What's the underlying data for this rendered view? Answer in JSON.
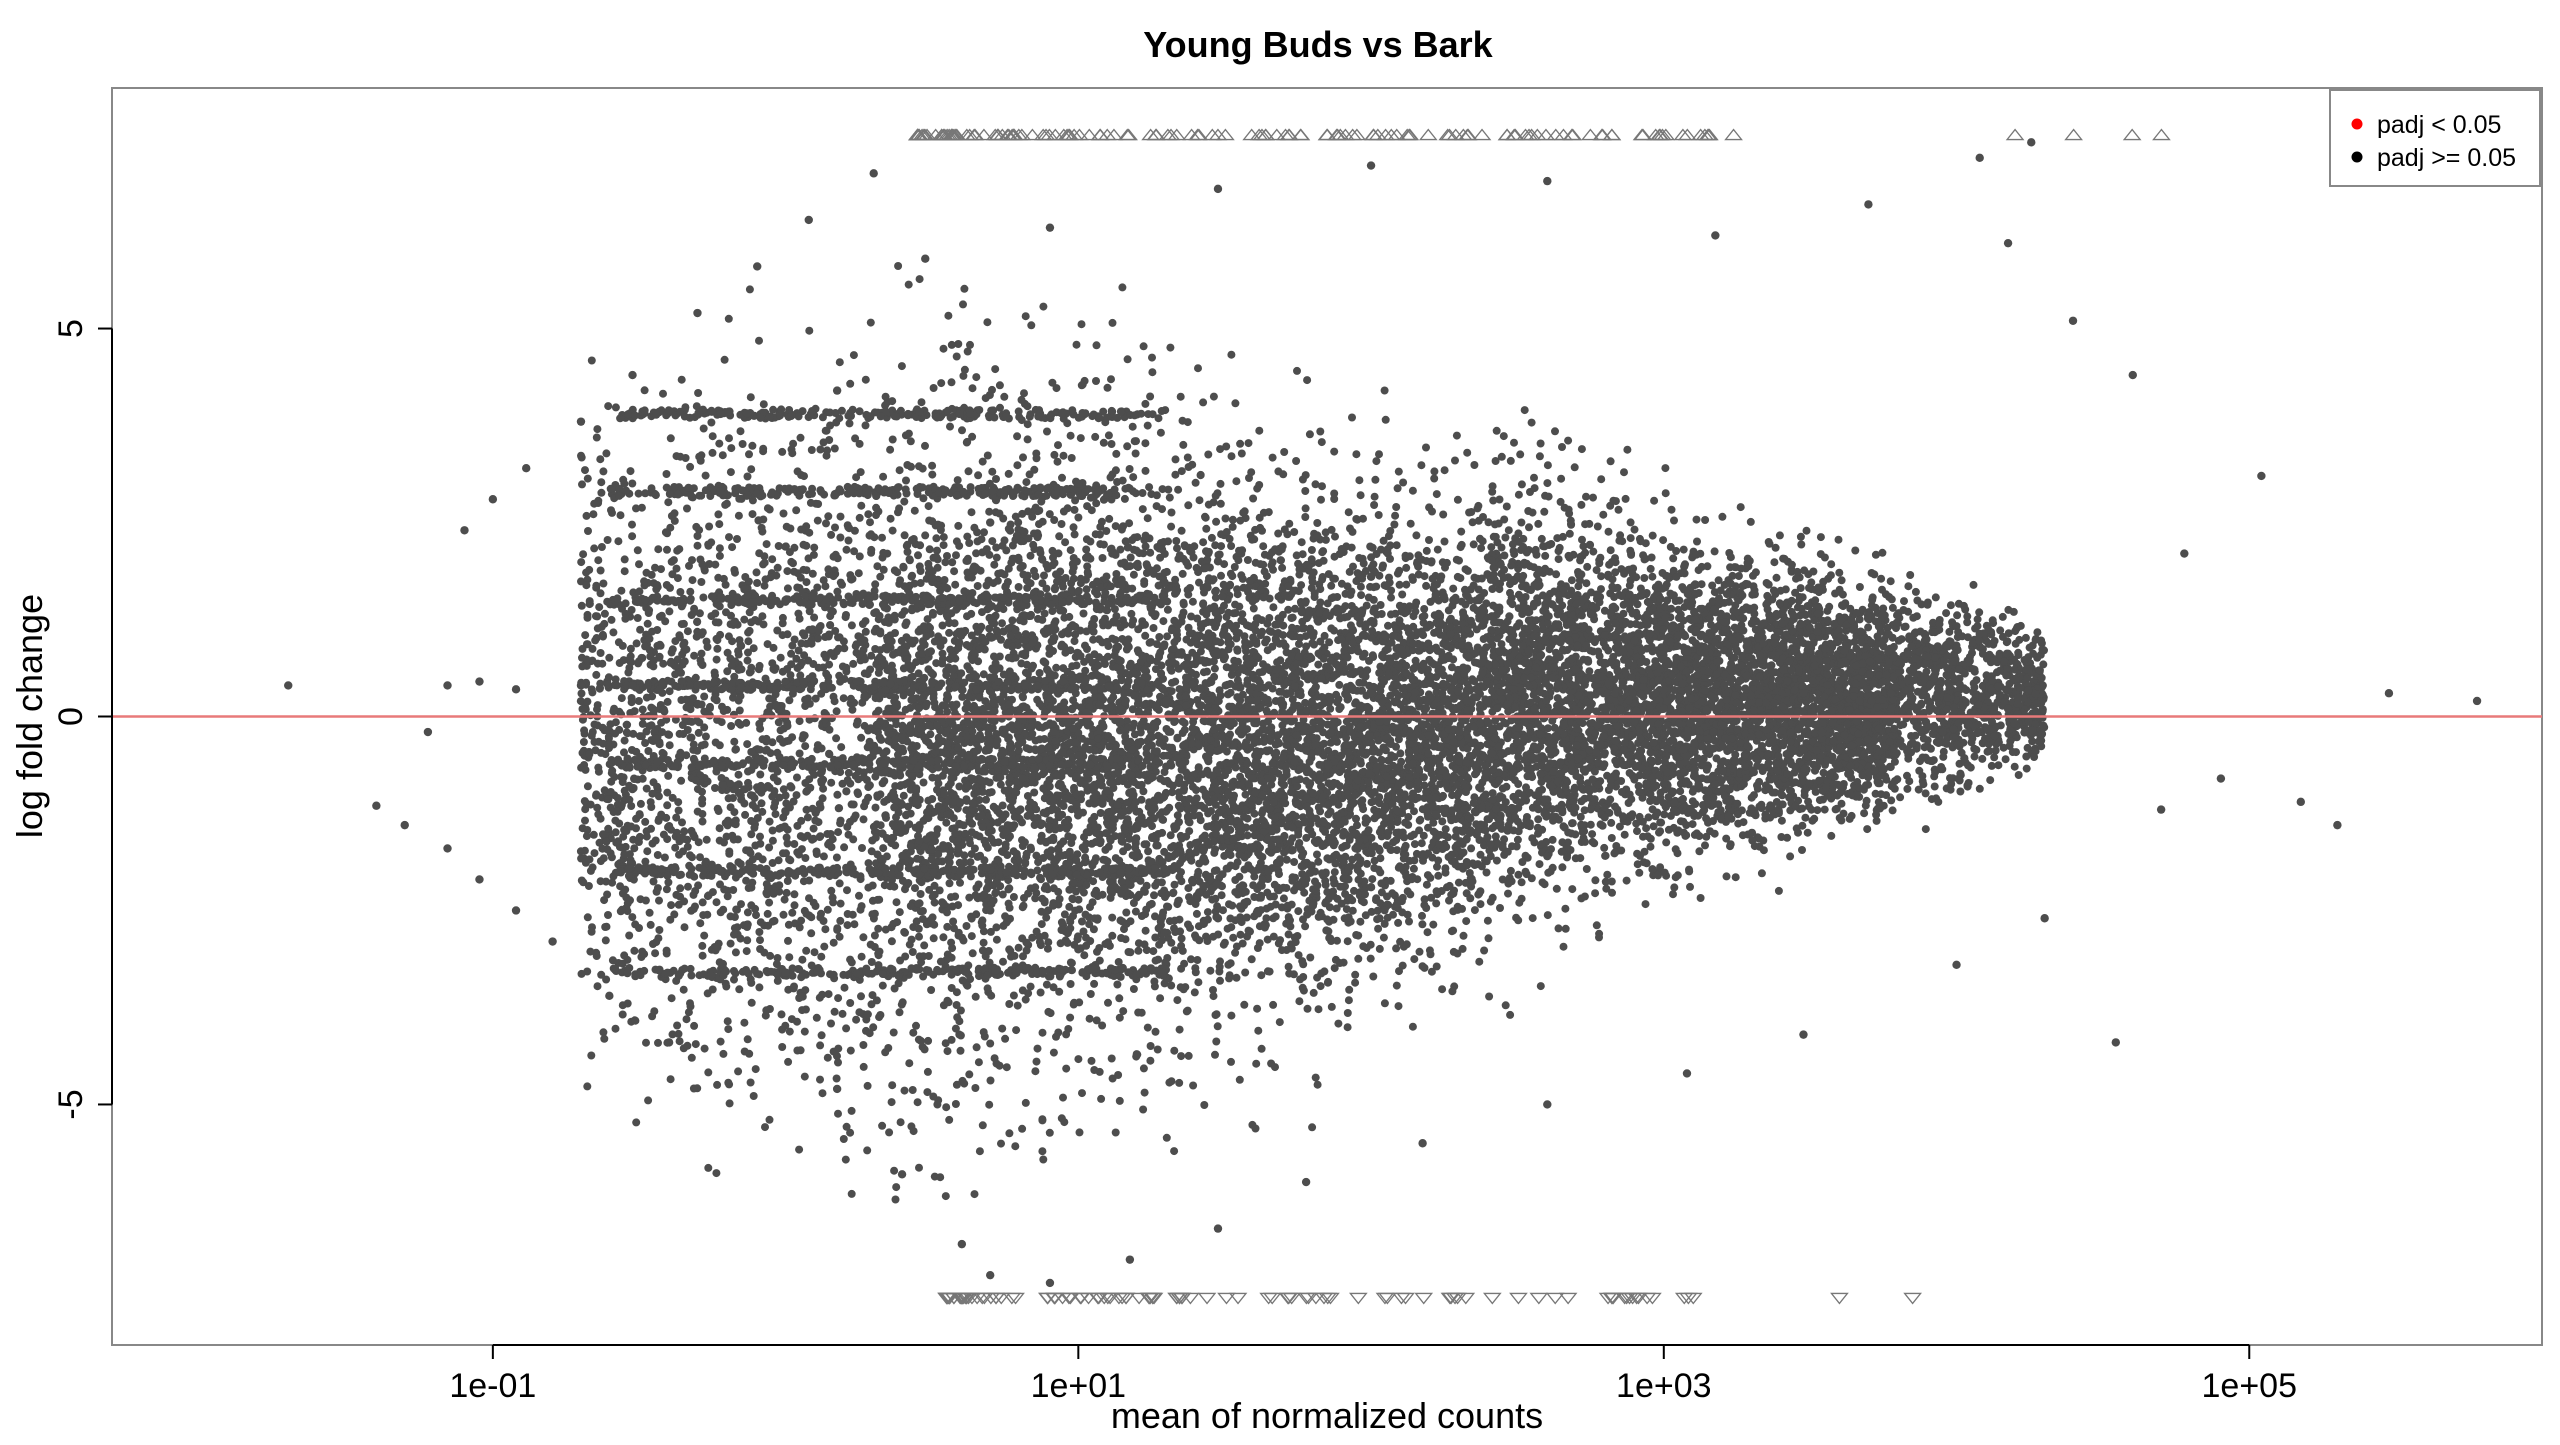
{
  "chart_data": {
    "type": "scatter",
    "title": "Young Buds vs Bark",
    "xlabel": "mean of normalized counts",
    "ylabel": "log fold change",
    "x_scale": "log10",
    "xlim": [
      0.005,
      1000000
    ],
    "ylim": [
      -8.1,
      8.1
    ],
    "x_ticks": [
      {
        "value": 0.1,
        "label": "1e-01"
      },
      {
        "value": 10,
        "label": "1e+01"
      },
      {
        "value": 1000,
        "label": "1e+03"
      },
      {
        "value": 100000,
        "label": "1e+05"
      }
    ],
    "y_ticks": [
      {
        "value": -5,
        "label": "-5"
      },
      {
        "value": 0,
        "label": "0"
      },
      {
        "value": 5,
        "label": "5"
      }
    ],
    "reference_line": {
      "y": 0,
      "color": "#e87a7a"
    },
    "legend": {
      "position": "top-right",
      "entries": [
        {
          "label": "padj < 0.05",
          "color": "#ff0000"
        },
        {
          "label": "padj >= 0.05",
          "color": "#000000"
        }
      ]
    },
    "point_color": "#4d4d4d",
    "clipped_marker_color": "#777777",
    "clip_value": 7.5,
    "series": [
      {
        "values": [
          [
            0.02,
            0.4
          ],
          [
            0.06,
            -0.2
          ],
          [
            0.07,
            0.4
          ],
          [
            0.09,
            0.45
          ],
          [
            0.12,
            0.35
          ],
          [
            0.2,
            0.4
          ],
          [
            0.3,
            0.4
          ],
          [
            0.5,
            0.4
          ],
          [
            0.04,
            -1.15
          ],
          [
            0.05,
            -1.4
          ],
          [
            0.07,
            -1.7
          ],
          [
            0.09,
            -2.1
          ],
          [
            0.12,
            -2.5
          ],
          [
            0.16,
            -2.9
          ],
          [
            0.25,
            -3.6
          ],
          [
            0.4,
            -4.2
          ],
          [
            0.08,
            2.4
          ],
          [
            0.1,
            2.8
          ],
          [
            0.13,
            3.2
          ],
          [
            0.2,
            3.8
          ],
          [
            0.3,
            4.4
          ],
          [
            0.5,
            5.2
          ],
          [
            0.8,
            5.8
          ],
          [
            1.2,
            6.4
          ],
          [
            2,
            7.0
          ],
          [
            0.6,
            3.9
          ],
          [
            0.6,
            2.9
          ],
          [
            0.6,
            -2.0
          ],
          [
            1.0,
            1.5
          ],
          [
            1.0,
            -3.3
          ],
          [
            1.5,
            4.2
          ],
          [
            1.5,
            -4.8
          ],
          [
            2.5,
            -5.9
          ],
          [
            4,
            -6.8
          ],
          [
            5,
            -7.2
          ],
          [
            8,
            -7.3
          ],
          [
            15,
            -7.0
          ],
          [
            30,
            -6.6
          ],
          [
            60,
            -6.0
          ],
          [
            150,
            -5.5
          ],
          [
            400,
            -5.0
          ],
          [
            1200,
            -4.6
          ],
          [
            3000,
            -4.1
          ],
          [
            10000,
            -3.2
          ],
          [
            20000,
            -2.6
          ],
          [
            35000,
            -4.2
          ],
          [
            50000,
            -1.2
          ],
          [
            80000,
            -0.8
          ],
          [
            150000,
            -1.1
          ],
          [
            200000,
            -1.4
          ],
          [
            300000,
            0.3
          ],
          [
            600000,
            0.2
          ],
          [
            110000,
            3.1
          ],
          [
            60000,
            2.1
          ],
          [
            40000,
            4.4
          ],
          [
            25000,
            5.1
          ],
          [
            15000,
            6.1
          ],
          [
            12000,
            7.2
          ],
          [
            18000,
            7.4
          ],
          [
            5000,
            6.6
          ],
          [
            1500,
            6.2
          ],
          [
            400,
            6.9
          ],
          [
            100,
            7.1
          ],
          [
            30,
            6.8
          ],
          [
            8,
            6.3
          ],
          [
            3,
            5.9
          ],
          [
            5,
            0.5
          ],
          [
            10,
            -0.5
          ],
          [
            20,
            0.2
          ],
          [
            40,
            -0.3
          ],
          [
            100,
            0.3
          ],
          [
            200,
            -0.2
          ],
          [
            500,
            0.4
          ],
          [
            1000,
            0.1
          ],
          [
            3000,
            0.3
          ],
          [
            8000,
            0.2
          ],
          [
            15000,
            0.1
          ],
          [
            5,
            2.5
          ],
          [
            10,
            3.0
          ],
          [
            30,
            2.0
          ],
          [
            100,
            1.8
          ],
          [
            400,
            1.5
          ],
          [
            2000,
            1.2
          ],
          [
            5,
            -2.5
          ],
          [
            10,
            -3.0
          ],
          [
            30,
            -2.6
          ],
          [
            100,
            -2.2
          ],
          [
            400,
            -1.8
          ],
          [
            2000,
            -1.5
          ]
        ]
      }
    ]
  }
}
